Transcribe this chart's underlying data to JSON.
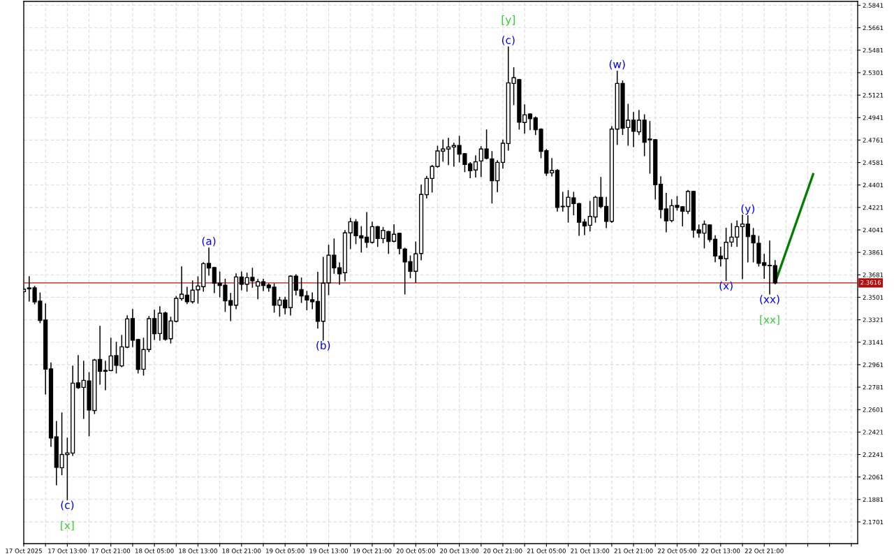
{
  "chart_data": {
    "type": "candlestick",
    "x": [
      "2025-10-17T05:00",
      "2025-10-17T06:00",
      "2025-10-17T07:00",
      "2025-10-17T08:00",
      "2025-10-17T09:00",
      "2025-10-17T10:00",
      "2025-10-17T11:00",
      "2025-10-17T12:00",
      "2025-10-17T13:00",
      "2025-10-17T14:00",
      "2025-10-17T15:00",
      "2025-10-17T16:00",
      "2025-10-17T17:00",
      "2025-10-17T18:00",
      "2025-10-17T19:00",
      "2025-10-17T20:00",
      "2025-10-17T21:00",
      "2025-10-17T22:00",
      "2025-10-17T23:00",
      "2025-10-18T00:00",
      "2025-10-18T01:00",
      "2025-10-18T02:00",
      "2025-10-18T03:00",
      "2025-10-18T04:00",
      "2025-10-18T05:00",
      "2025-10-18T06:00",
      "2025-10-18T07:00",
      "2025-10-18T08:00",
      "2025-10-18T09:00",
      "2025-10-18T10:00",
      "2025-10-18T11:00",
      "2025-10-18T12:00",
      "2025-10-18T13:00",
      "2025-10-18T14:00",
      "2025-10-18T15:00",
      "2025-10-18T16:00",
      "2025-10-18T17:00",
      "2025-10-18T18:00",
      "2025-10-18T19:00",
      "2025-10-18T20:00",
      "2025-10-18T21:00",
      "2025-10-18T22:00",
      "2025-10-18T23:00",
      "2025-10-19T00:00",
      "2025-10-19T01:00",
      "2025-10-19T02:00",
      "2025-10-19T03:00",
      "2025-10-19T04:00",
      "2025-10-19T05:00",
      "2025-10-19T06:00",
      "2025-10-19T07:00",
      "2025-10-19T08:00",
      "2025-10-19T09:00",
      "2025-10-19T10:00",
      "2025-10-19T11:00",
      "2025-10-19T12:00",
      "2025-10-19T13:00",
      "2025-10-19T14:00",
      "2025-10-19T15:00",
      "2025-10-19T16:00",
      "2025-10-19T17:00",
      "2025-10-19T18:00",
      "2025-10-19T19:00",
      "2025-10-19T20:00",
      "2025-10-19T21:00",
      "2025-10-19T22:00",
      "2025-10-19T23:00",
      "2025-10-20T00:00",
      "2025-10-20T01:00",
      "2025-10-20T02:00",
      "2025-10-20T03:00",
      "2025-10-20T04:00",
      "2025-10-20T05:00",
      "2025-10-20T06:00",
      "2025-10-20T07:00",
      "2025-10-20T08:00",
      "2025-10-20T09:00",
      "2025-10-20T10:00",
      "2025-10-20T11:00",
      "2025-10-20T12:00",
      "2025-10-20T13:00",
      "2025-10-20T14:00",
      "2025-10-20T15:00",
      "2025-10-20T16:00",
      "2025-10-20T17:00",
      "2025-10-20T18:00",
      "2025-10-20T19:00",
      "2025-10-20T20:00",
      "2025-10-20T21:00",
      "2025-10-20T22:00",
      "2025-10-20T23:00",
      "2025-10-21T00:00",
      "2025-10-21T01:00",
      "2025-10-21T02:00",
      "2025-10-21T03:00",
      "2025-10-21T04:00",
      "2025-10-21T05:00",
      "2025-10-21T06:00",
      "2025-10-21T07:00",
      "2025-10-21T08:00",
      "2025-10-21T09:00",
      "2025-10-21T10:00",
      "2025-10-21T11:00",
      "2025-10-21T12:00",
      "2025-10-21T13:00",
      "2025-10-21T14:00",
      "2025-10-21T15:00",
      "2025-10-21T16:00",
      "2025-10-21T17:00",
      "2025-10-21T18:00",
      "2025-10-21T19:00",
      "2025-10-21T20:00",
      "2025-10-21T21:00",
      "2025-10-21T22:00",
      "2025-10-21T23:00",
      "2025-10-22T00:00",
      "2025-10-22T01:00",
      "2025-10-22T02:00",
      "2025-10-22T03:00",
      "2025-10-22T04:00",
      "2025-10-22T05:00",
      "2025-10-22T06:00",
      "2025-10-22T07:00",
      "2025-10-22T08:00",
      "2025-10-22T09:00",
      "2025-10-22T10:00",
      "2025-10-22T11:00",
      "2025-10-22T12:00",
      "2025-10-22T13:00",
      "2025-10-22T14:00",
      "2025-10-22T15:00",
      "2025-10-22T16:00",
      "2025-10-22T17:00",
      "2025-10-22T18:00",
      "2025-10-22T19:00",
      "2025-10-22T20:00",
      "2025-10-22T21:00",
      "2025-10-22T22:00",
      "2025-10-22T23:00"
    ],
    "ohlc": [
      [
        2.3546,
        2.3572,
        2.354,
        2.3565
      ],
      [
        2.3576,
        2.3666,
        2.3472,
        2.3569
      ],
      [
        2.3576,
        2.3588,
        2.3449,
        2.3464
      ],
      [
        2.347,
        2.3535,
        2.3298,
        2.3315
      ],
      [
        2.3319,
        2.3447,
        2.2727,
        2.2925
      ],
      [
        2.2927,
        2.2975,
        2.2307,
        2.2374
      ],
      [
        2.2383,
        2.2505,
        2.1999,
        2.2139
      ],
      [
        2.2135,
        2.2574,
        2.2079,
        2.2241
      ],
      [
        2.2241,
        2.2372,
        2.1879,
        2.2254
      ],
      [
        2.2253,
        2.2949,
        2.2234,
        2.2813
      ],
      [
        2.2815,
        2.3033,
        2.2772,
        2.2777
      ],
      [
        2.2779,
        2.2988,
        2.2531,
        2.2835
      ],
      [
        2.2831,
        2.2897,
        2.2391,
        2.2598
      ],
      [
        2.2594,
        2.3003,
        2.257,
        2.2998
      ],
      [
        2.3003,
        2.3268,
        2.2805,
        2.2908
      ],
      [
        2.2915,
        2.2988,
        2.276,
        2.2908
      ],
      [
        2.2914,
        2.3173,
        2.2912,
        2.3031
      ],
      [
        2.3033,
        2.314,
        2.2895,
        2.2956
      ],
      [
        2.2951,
        2.3195,
        2.2945,
        2.3104
      ],
      [
        2.3102,
        2.3352,
        2.3097,
        2.3328
      ],
      [
        2.333,
        2.3403,
        2.3106,
        2.3158
      ],
      [
        2.3162,
        2.3164,
        2.2895,
        2.2923
      ],
      [
        2.2925,
        2.3173,
        2.2878,
        2.3082
      ],
      [
        2.3082,
        2.3347,
        2.3065,
        2.333
      ],
      [
        2.333,
        2.3397,
        2.3164,
        2.3209
      ],
      [
        2.321,
        2.3425,
        2.3158,
        2.3373
      ],
      [
        2.3375,
        2.3382,
        2.3158,
        2.3165
      ],
      [
        2.3169,
        2.3341,
        2.3135,
        2.3311
      ],
      [
        2.3309,
        2.3507,
        2.3304,
        2.3492
      ],
      [
        2.349,
        2.3744,
        2.3479,
        2.3526
      ],
      [
        2.3518,
        2.358,
        2.3451,
        2.3466
      ],
      [
        2.3466,
        2.3632,
        2.3455,
        2.3558
      ],
      [
        2.3561,
        2.3664,
        2.3455,
        2.3591
      ],
      [
        2.3586,
        2.3778,
        2.355,
        2.377
      ],
      [
        2.3772,
        2.3895,
        2.3679,
        2.3735
      ],
      [
        2.3739,
        2.3741,
        2.3539,
        2.3614
      ],
      [
        2.3614,
        2.3703,
        2.3505,
        2.3595
      ],
      [
        2.3597,
        2.3645,
        2.3388,
        2.3472
      ],
      [
        2.3475,
        2.3531,
        2.3315,
        2.3438
      ],
      [
        2.3438,
        2.3688,
        2.341,
        2.3664
      ],
      [
        2.3664,
        2.3703,
        2.3561,
        2.3606
      ],
      [
        2.3606,
        2.3694,
        2.355,
        2.3658
      ],
      [
        2.366,
        2.3733,
        2.3582,
        2.3634
      ],
      [
        2.3591,
        2.3643,
        2.3489,
        2.3625
      ],
      [
        2.3625,
        2.3645,
        2.3556,
        2.3595
      ],
      [
        2.3599,
        2.3608,
        2.355,
        2.3578
      ],
      [
        2.3582,
        2.3608,
        2.3382,
        2.3438
      ],
      [
        2.3438,
        2.35,
        2.335,
        2.3479
      ],
      [
        2.3479,
        2.35,
        2.3369,
        2.3416
      ],
      [
        2.3418,
        2.3672,
        2.336,
        2.367
      ],
      [
        2.367,
        2.3681,
        2.352,
        2.3558
      ],
      [
        2.3563,
        2.3655,
        2.346,
        2.3511
      ],
      [
        2.3513,
        2.3548,
        2.3401,
        2.3479
      ],
      [
        2.3481,
        2.3535,
        2.341,
        2.3466
      ],
      [
        2.3468,
        2.3701,
        2.3255,
        2.3309
      ],
      [
        2.3309,
        2.3821,
        2.3158,
        2.3614
      ],
      [
        2.3617,
        2.3918,
        2.3522,
        2.3838
      ],
      [
        2.3838,
        2.3968,
        2.3694,
        2.3737
      ],
      [
        2.3737,
        2.3776,
        2.3606,
        2.369
      ],
      [
        2.3698,
        2.4036,
        2.3634,
        2.4017
      ],
      [
        2.4017,
        2.4134,
        2.3892,
        2.4106
      ],
      [
        2.4106,
        2.4123,
        2.3931,
        2.3994
      ],
      [
        2.3994,
        2.4067,
        2.3864,
        2.3976
      ],
      [
        2.3983,
        2.4179,
        2.3901,
        2.3942
      ],
      [
        2.3942,
        2.4103,
        2.3936,
        2.4067
      ],
      [
        2.4067,
        2.4069,
        2.3909,
        2.3972
      ],
      [
        2.3972,
        2.406,
        2.3938,
        2.4037
      ],
      [
        2.4028,
        2.403,
        2.3853,
        2.3948
      ],
      [
        2.395,
        2.4082,
        2.3946,
        2.4006
      ],
      [
        2.4013,
        2.4015,
        2.3849,
        2.3892
      ],
      [
        2.3888,
        2.3894,
        2.3528,
        2.3785
      ],
      [
        2.3787,
        2.3832,
        2.3658,
        2.3709
      ],
      [
        2.3709,
        2.3944,
        2.3621,
        2.3849
      ],
      [
        2.3852,
        2.4399,
        2.3802,
        2.4325
      ],
      [
        2.4323,
        2.447,
        2.4297,
        2.4453
      ],
      [
        2.4453,
        2.4558,
        2.4345,
        2.4549
      ],
      [
        2.4549,
        2.4711,
        2.4543,
        2.4674
      ],
      [
        2.4672,
        2.4761,
        2.4592,
        2.4689
      ],
      [
        2.4689,
        2.4774,
        2.4564,
        2.4705
      ],
      [
        2.4705,
        2.4735,
        2.4552,
        2.4717
      ],
      [
        2.4717,
        2.4791,
        2.4586,
        2.4648
      ],
      [
        2.4651,
        2.4653,
        2.4508,
        2.4565
      ],
      [
        2.4571,
        2.458,
        2.4459,
        2.4515
      ],
      [
        2.4521,
        2.4635,
        2.4465,
        2.4586
      ],
      [
        2.4593,
        2.4707,
        2.447,
        2.4689
      ],
      [
        2.4689,
        2.4842,
        2.461,
        2.4614
      ],
      [
        2.461,
        2.4668,
        2.4257,
        2.4435
      ],
      [
        2.4435,
        2.4595,
        2.4347,
        2.4582
      ],
      [
        2.4582,
        2.4761,
        2.4536,
        2.4735
      ],
      [
        2.4733,
        2.5506,
        2.4681,
        2.5219
      ],
      [
        2.5215,
        2.534,
        2.5045,
        2.526
      ],
      [
        2.5245,
        2.5247,
        2.4849,
        2.4905
      ],
      [
        2.4902,
        2.5043,
        2.4816,
        2.4963
      ],
      [
        2.4969,
        2.4971,
        2.4844,
        2.4933
      ],
      [
        2.4939,
        2.4945,
        2.4805,
        2.4844
      ],
      [
        2.4847,
        2.4851,
        2.462,
        2.467
      ],
      [
        2.4676,
        2.4685,
        2.4478,
        2.4496
      ],
      [
        2.4498,
        2.4612,
        2.4474,
        2.4517
      ],
      [
        2.4517,
        2.4524,
        2.4192,
        2.4222
      ],
      [
        2.423,
        2.4342,
        2.4192,
        2.4227
      ],
      [
        2.4229,
        2.4355,
        2.4104,
        2.4302
      ],
      [
        2.4297,
        2.4342,
        2.4162,
        2.4252
      ],
      [
        2.4252,
        2.4254,
        2.3998,
        2.4103
      ],
      [
        2.4104,
        2.4123,
        2.4004,
        2.4073
      ],
      [
        2.4078,
        2.4269,
        2.4033,
        2.4149
      ],
      [
        2.4145,
        2.431,
        2.4103,
        2.4302
      ],
      [
        2.4302,
        2.4461,
        2.4218,
        2.4228
      ],
      [
        2.4229,
        2.4302,
        2.406,
        2.411
      ],
      [
        2.411,
        2.4868,
        2.4101,
        2.4849
      ],
      [
        2.4849,
        2.5312,
        2.4726,
        2.5215
      ],
      [
        2.5215,
        2.5234,
        2.4806,
        2.4855
      ],
      [
        2.4862,
        2.5047,
        2.472,
        2.492
      ],
      [
        2.492,
        2.4982,
        2.4709,
        2.4832
      ],
      [
        2.4827,
        2.4997,
        2.4806,
        2.492
      ],
      [
        2.492,
        2.4963,
        2.4636,
        2.4743
      ],
      [
        2.4769,
        2.4909,
        2.4496,
        2.4762
      ],
      [
        2.4763,
        2.4765,
        2.4289,
        2.4403
      ],
      [
        2.4407,
        2.4467,
        2.4138,
        2.4205
      ],
      [
        2.4209,
        2.4334,
        2.4026,
        2.4114
      ],
      [
        2.4116,
        2.4282,
        2.4106,
        2.4235
      ],
      [
        2.4237,
        2.4308,
        2.42,
        2.4222
      ],
      [
        2.4226,
        2.4228,
        2.4073,
        2.419
      ],
      [
        2.419,
        2.4358,
        2.4173,
        2.4349
      ],
      [
        2.4349,
        2.4351,
        2.3983,
        2.4039
      ],
      [
        2.4041,
        2.408,
        2.3983,
        2.4015
      ],
      [
        2.4015,
        2.4112,
        2.3897,
        2.4086
      ],
      [
        2.408,
        2.4082,
        2.3948,
        2.3964
      ],
      [
        2.3966,
        2.3994,
        2.3787,
        2.3832
      ],
      [
        2.3832,
        2.3903,
        2.3752,
        2.381
      ],
      [
        2.381,
        2.4054,
        2.3636,
        2.3942
      ],
      [
        2.3944,
        2.4091,
        2.391,
        2.3983
      ],
      [
        2.3983,
        2.4112,
        2.391,
        2.4067
      ],
      [
        2.4067,
        2.4159,
        2.3651,
        2.4088
      ],
      [
        2.4088,
        2.4155,
        2.3785,
        2.3987
      ],
      [
        2.3996,
        2.4052,
        2.3785,
        2.3937
      ],
      [
        2.3933,
        2.3989,
        2.3752,
        2.3774
      ],
      [
        2.3778,
        2.3845,
        2.3653,
        2.3757
      ],
      [
        2.3757,
        2.3951,
        2.3528,
        2.3754
      ],
      [
        2.3755,
        2.3795,
        2.361,
        2.3616
      ]
    ],
    "colors": [
      "#ffffff",
      "#000000",
      "#000000",
      "#000000",
      "#000000",
      "#000000",
      "#000000",
      "#ffffff",
      "#ffffff",
      "#ffffff",
      "#000000",
      "#ffffff",
      "#000000",
      "#ffffff",
      "#000000",
      "#000000",
      "#ffffff",
      "#000000",
      "#ffffff",
      "#ffffff",
      "#000000",
      "#000000",
      "#ffffff",
      "#ffffff",
      "#000000",
      "#ffffff",
      "#000000",
      "#ffffff",
      "#ffffff",
      "#ffffff",
      "#000000",
      "#ffffff",
      "#ffffff",
      "#ffffff",
      "#000000",
      "#000000",
      "#000000",
      "#000000",
      "#000000",
      "#ffffff",
      "#000000",
      "#ffffff",
      "#000000",
      "#ffffff",
      "#000000",
      "#000000",
      "#000000",
      "#ffffff",
      "#000000",
      "#ffffff",
      "#000000",
      "#000000",
      "#000000",
      "#000000",
      "#000000",
      "#ffffff",
      "#ffffff",
      "#000000",
      "#000000",
      "#ffffff",
      "#ffffff",
      "#000000",
      "#000000",
      "#000000",
      "#ffffff",
      "#000000",
      "#ffffff",
      "#000000",
      "#ffffff",
      "#000000",
      "#000000",
      "#000000",
      "#ffffff",
      "#ffffff",
      "#ffffff",
      "#ffffff",
      "#ffffff",
      "#ffffff",
      "#ffffff",
      "#ffffff",
      "#000000",
      "#000000",
      "#000000",
      "#ffffff",
      "#ffffff",
      "#000000",
      "#000000",
      "#ffffff",
      "#ffffff",
      "#ffffff",
      "#ffffff",
      "#000000",
      "#ffffff",
      "#000000",
      "#000000",
      "#000000",
      "#000000",
      "#ffffff",
      "#000000",
      "#000000",
      "#ffffff",
      "#000000",
      "#000000",
      "#000000",
      "#ffffff",
      "#ffffff",
      "#000000",
      "#000000",
      "#ffffff",
      "#ffffff",
      "#000000",
      "#ffffff",
      "#000000",
      "#ffffff",
      "#000000",
      "#000000",
      "#000000",
      "#000000",
      "#000000",
      "#ffffff",
      "#000000",
      "#000000",
      "#ffffff",
      "#000000",
      "#000000",
      "#ffffff",
      "#000000",
      "#000000",
      "#000000",
      "#ffffff",
      "#ffffff",
      "#ffffff",
      "#ffffff",
      "#000000",
      "#000000",
      "#000000",
      "#000000",
      "#000000",
      "#000000"
    ],
    "series": [
      {
        "type": "line",
        "x": [
          "2025-10-22T23:00",
          "2025-10-23T06:00"
        ],
        "values": [
          2.3616,
          2.4489
        ],
        "color": "#008000"
      }
    ],
    "xlim": [
      "2025-10-17T05:00",
      "2025-10-23T14:10"
    ],
    "xticks": [
      {
        "value": "2025-10-17T05:00",
        "label": "17 Oct 2025"
      },
      {
        "value": "2025-10-17T09:00",
        "label": null
      },
      {
        "value": "2025-10-17T13:00",
        "label": "17 Oct 13:00"
      },
      {
        "value": "2025-10-17T17:00",
        "label": null
      },
      {
        "value": "2025-10-17T21:00",
        "label": "17 Oct 21:00"
      },
      {
        "value": "2025-10-18T01:00",
        "label": null
      },
      {
        "value": "2025-10-18T05:00",
        "label": "18 Oct 05:00"
      },
      {
        "value": "2025-10-18T09:00",
        "label": null
      },
      {
        "value": "2025-10-18T13:00",
        "label": "18 Oct 13:00"
      },
      {
        "value": "2025-10-18T17:00",
        "label": null
      },
      {
        "value": "2025-10-18T21:00",
        "label": "18 Oct 21:00"
      },
      {
        "value": "2025-10-19T01:00",
        "label": null
      },
      {
        "value": "2025-10-19T05:00",
        "label": "19 Oct 05:00"
      },
      {
        "value": "2025-10-19T09:00",
        "label": null
      },
      {
        "value": "2025-10-19T13:00",
        "label": "19 Oct 13:00"
      },
      {
        "value": "2025-10-19T17:00",
        "label": null
      },
      {
        "value": "2025-10-19T21:00",
        "label": "19 Oct 21:00"
      },
      {
        "value": "2025-10-20T01:00",
        "label": null
      },
      {
        "value": "2025-10-20T05:00",
        "label": "20 Oct 05:00"
      },
      {
        "value": "2025-10-20T09:00",
        "label": null
      },
      {
        "value": "2025-10-20T13:00",
        "label": "20 Oct 13:00"
      },
      {
        "value": "2025-10-20T17:00",
        "label": null
      },
      {
        "value": "2025-10-20T21:00",
        "label": "20 Oct 21:00"
      },
      {
        "value": "2025-10-21T01:00",
        "label": null
      },
      {
        "value": "2025-10-21T05:00",
        "label": "21 Oct 05:00"
      },
      {
        "value": "2025-10-21T09:00",
        "label": null
      },
      {
        "value": "2025-10-21T13:00",
        "label": "21 Oct 13:00"
      },
      {
        "value": "2025-10-21T17:00",
        "label": null
      },
      {
        "value": "2025-10-21T21:00",
        "label": "21 Oct 21:00"
      },
      {
        "value": "2025-10-22T01:00",
        "label": null
      },
      {
        "value": "2025-10-22T05:00",
        "label": "22 Oct 05:00"
      },
      {
        "value": "2025-10-22T09:00",
        "label": null
      },
      {
        "value": "2025-10-22T13:00",
        "label": "22 Oct 13:00"
      },
      {
        "value": "2025-10-22T17:00",
        "label": null
      },
      {
        "value": "2025-10-22T21:00",
        "label": "22 Oct 21:00"
      },
      {
        "value": "2025-10-23T01:00",
        "label": null
      },
      {
        "value": "2025-10-23T05:00",
        "label": null
      },
      {
        "value": "2025-10-23T09:00",
        "label": null
      },
      {
        "value": "2025-10-23T13:00",
        "label": null
      }
    ],
    "ylim": [
      2.1527,
      2.5872
    ],
    "yticks": [
      2.1701,
      2.1881,
      2.2061,
      2.2241,
      2.2421,
      2.2601,
      2.2781,
      2.2961,
      2.3141,
      2.3321,
      2.3501,
      2.3681,
      2.3861,
      2.4041,
      2.4221,
      2.4401,
      2.4581,
      2.4761,
      2.4941,
      2.5121,
      2.5301,
      2.5481,
      2.5661,
      2.5841
    ],
    "grid": true,
    "ref_lines": [
      {
        "axis": "y",
        "value": 2.3616,
        "label": "2.3616",
        "color": "#b01010"
      }
    ],
    "annotations": [
      {
        "text": "(c)",
        "x": "2025-10-20T22:00",
        "y": 2.5506
      },
      {
        "text": "[y]",
        "x": "2025-10-20T22:00",
        "y": 2.5506
      },
      {
        "text": "(w)",
        "x": "2025-10-21T18:00",
        "y": 2.5312
      },
      {
        "text": "(a)",
        "x": "2025-10-18T15:00",
        "y": 2.3895
      },
      {
        "text": "(b)",
        "x": "2025-10-19T12:00",
        "y": 2.3158
      },
      {
        "text": "(c)",
        "x": "2025-10-17T13:00",
        "y": 2.1879
      },
      {
        "text": "[x]",
        "x": "2025-10-17T13:00",
        "y": 2.1879
      },
      {
        "text": "(x)",
        "x": "2025-10-22T14:00",
        "y": 2.3636
      },
      {
        "text": "(y)",
        "x": "2025-10-22T18:00",
        "y": 2.4155
      },
      {
        "text": "(xx)",
        "x": "2025-10-22T22:00",
        "y": 2.3528
      },
      {
        "text": "[xx]",
        "x": "2025-10-22T22:00",
        "y": 2.3528
      }
    ]
  }
}
